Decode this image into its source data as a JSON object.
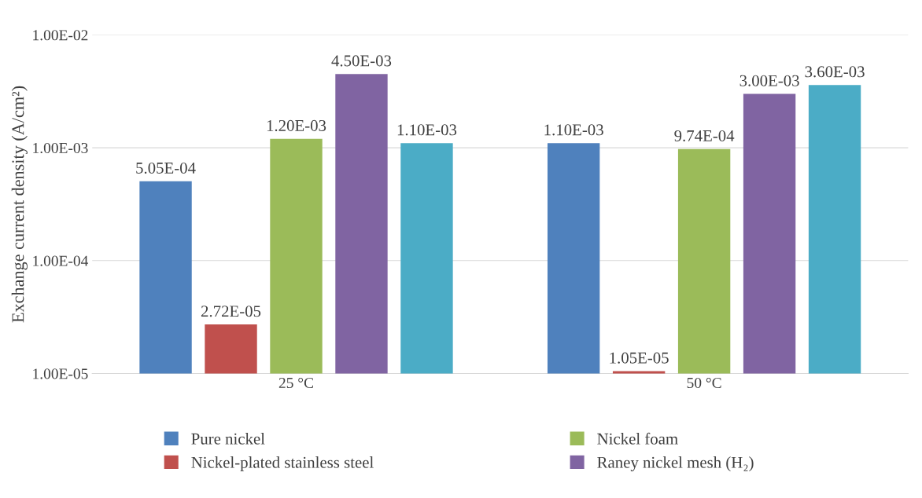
{
  "chart_data": {
    "type": "bar",
    "ylabel": "Exchange current density (A/cm²)",
    "categories": [
      "25 °C",
      "50 °C"
    ],
    "series": [
      {
        "name": "Pure nickel",
        "color": "#4f81bd",
        "values": [
          0.000505,
          0.0011
        ],
        "value_labels": [
          "5.05E-04",
          "1.10E-03"
        ]
      },
      {
        "name": "Nickel-plated stainless steel",
        "color": "#c0504d",
        "values": [
          2.72e-05,
          1.05e-05
        ],
        "value_labels": [
          "2.72E-05",
          "1.05E-05"
        ]
      },
      {
        "name": "Nickel foam",
        "color": "#9bbb59",
        "values": [
          0.0012,
          0.000974
        ],
        "value_labels": [
          "1.20E-03",
          "9.74E-04"
        ]
      },
      {
        "name": "Raney nickel mesh (H₂)",
        "color": "#8064a2",
        "values": [
          0.0045,
          0.003
        ],
        "value_labels": [
          "4.50E-03",
          "3.00E-03"
        ]
      },
      {
        "color": "#4bacc6",
        "values": [
          0.0011,
          0.0036
        ],
        "value_labels": [
          "1.10E-03",
          "3.60E-03"
        ]
      }
    ],
    "log": "y",
    "ylim": [
      1e-05,
      0.01
    ],
    "yticks": [
      {
        "value": 1e-05,
        "label": "1.00E-05"
      },
      {
        "value": 0.0001,
        "label": "1.00E-04"
      },
      {
        "value": 0.001,
        "label": "1.00E-03"
      },
      {
        "value": 0.01,
        "label": "1.00E-02"
      }
    ],
    "grid": "y",
    "legend": "bottom"
  }
}
